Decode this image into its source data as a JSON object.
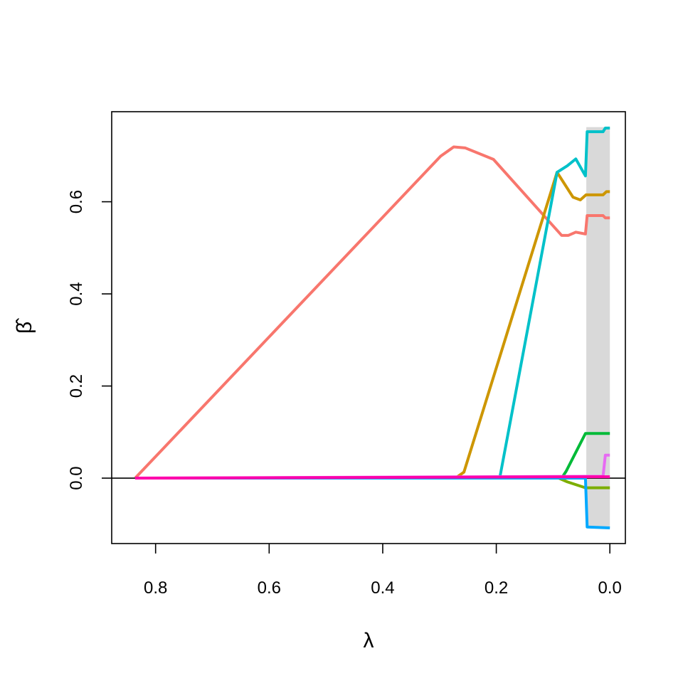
{
  "chart_data": {
    "type": "line",
    "title": "",
    "xlabel": "λ",
    "ylabel": "β̂",
    "xlim": [
      0.8773,
      -0.0273
    ],
    "ylim": [
      -0.142,
      0.7955
    ],
    "x_reversed": true,
    "xticks": [
      0.8,
      0.6,
      0.4,
      0.2,
      0.0
    ],
    "xtick_labels": [
      "0.8",
      "0.6",
      "0.4",
      "0.2",
      "0.0"
    ],
    "yticks": [
      0.0,
      0.2,
      0.4,
      0.6
    ],
    "ytick_labels": [
      "0.0",
      "0.2",
      "0.4",
      "0.6"
    ],
    "zero_line": 0,
    "grid": false,
    "legend": "none",
    "shaded_band": {
      "x": [
        0.0415,
        0.0
      ],
      "y": [
        -0.107,
        0.762
      ],
      "color": "#d9d9d9"
    },
    "series": [
      {
        "color": "#f8766d",
        "points": [
          [
            0.836,
            0.0
          ],
          [
            0.298,
            0.699
          ],
          [
            0.275,
            0.719
          ],
          [
            0.255,
            0.717
          ],
          [
            0.205,
            0.692
          ],
          [
            0.085,
            0.527
          ],
          [
            0.073,
            0.527
          ],
          [
            0.06,
            0.534
          ],
          [
            0.043,
            0.53
          ],
          [
            0.04,
            0.57
          ],
          [
            0.012,
            0.57
          ],
          [
            0.008,
            0.565
          ],
          [
            0.0,
            0.565
          ]
        ]
      },
      {
        "color": "#cd9600",
        "points": [
          [
            0.836,
            0.0
          ],
          [
            0.272,
            0.0
          ],
          [
            0.257,
            0.013
          ],
          [
            0.093,
            0.664
          ],
          [
            0.065,
            0.61
          ],
          [
            0.052,
            0.604
          ],
          [
            0.042,
            0.615
          ],
          [
            0.012,
            0.615
          ],
          [
            0.006,
            0.622
          ],
          [
            0.0,
            0.622
          ]
        ]
      },
      {
        "color": "#00c1c9",
        "points": [
          [
            0.836,
            0.0
          ],
          [
            0.194,
            0.0
          ],
          [
            0.093,
            0.664
          ],
          [
            0.075,
            0.678
          ],
          [
            0.06,
            0.693
          ],
          [
            0.043,
            0.656
          ],
          [
            0.04,
            0.752
          ],
          [
            0.012,
            0.752
          ],
          [
            0.008,
            0.76
          ],
          [
            0.0,
            0.76
          ]
        ]
      },
      {
        "color": "#00ba38",
        "points": [
          [
            0.836,
            0.0
          ],
          [
            0.085,
            0.0
          ],
          [
            0.077,
            0.015
          ],
          [
            0.043,
            0.097
          ],
          [
            0.0,
            0.097
          ]
        ]
      },
      {
        "color": "#7cae00",
        "points": [
          [
            0.836,
            0.0
          ],
          [
            0.09,
            0.0
          ],
          [
            0.075,
            -0.008
          ],
          [
            0.043,
            -0.021
          ],
          [
            0.0,
            -0.021
          ]
        ]
      },
      {
        "color": "#00a9ff",
        "points": [
          [
            0.836,
            0.0
          ],
          [
            0.043,
            0.0
          ],
          [
            0.04,
            -0.106
          ],
          [
            0.0,
            -0.108
          ]
        ]
      },
      {
        "color": "#e76bf3",
        "points": [
          [
            0.836,
            0.0
          ],
          [
            0.042,
            0.004
          ],
          [
            0.012,
            0.004
          ],
          [
            0.008,
            0.05
          ],
          [
            0.0,
            0.05
          ]
        ]
      },
      {
        "color": "#ff00aa",
        "points": [
          [
            0.836,
            0.0
          ],
          [
            0.043,
            0.003
          ],
          [
            0.0,
            0.003
          ]
        ]
      }
    ]
  }
}
